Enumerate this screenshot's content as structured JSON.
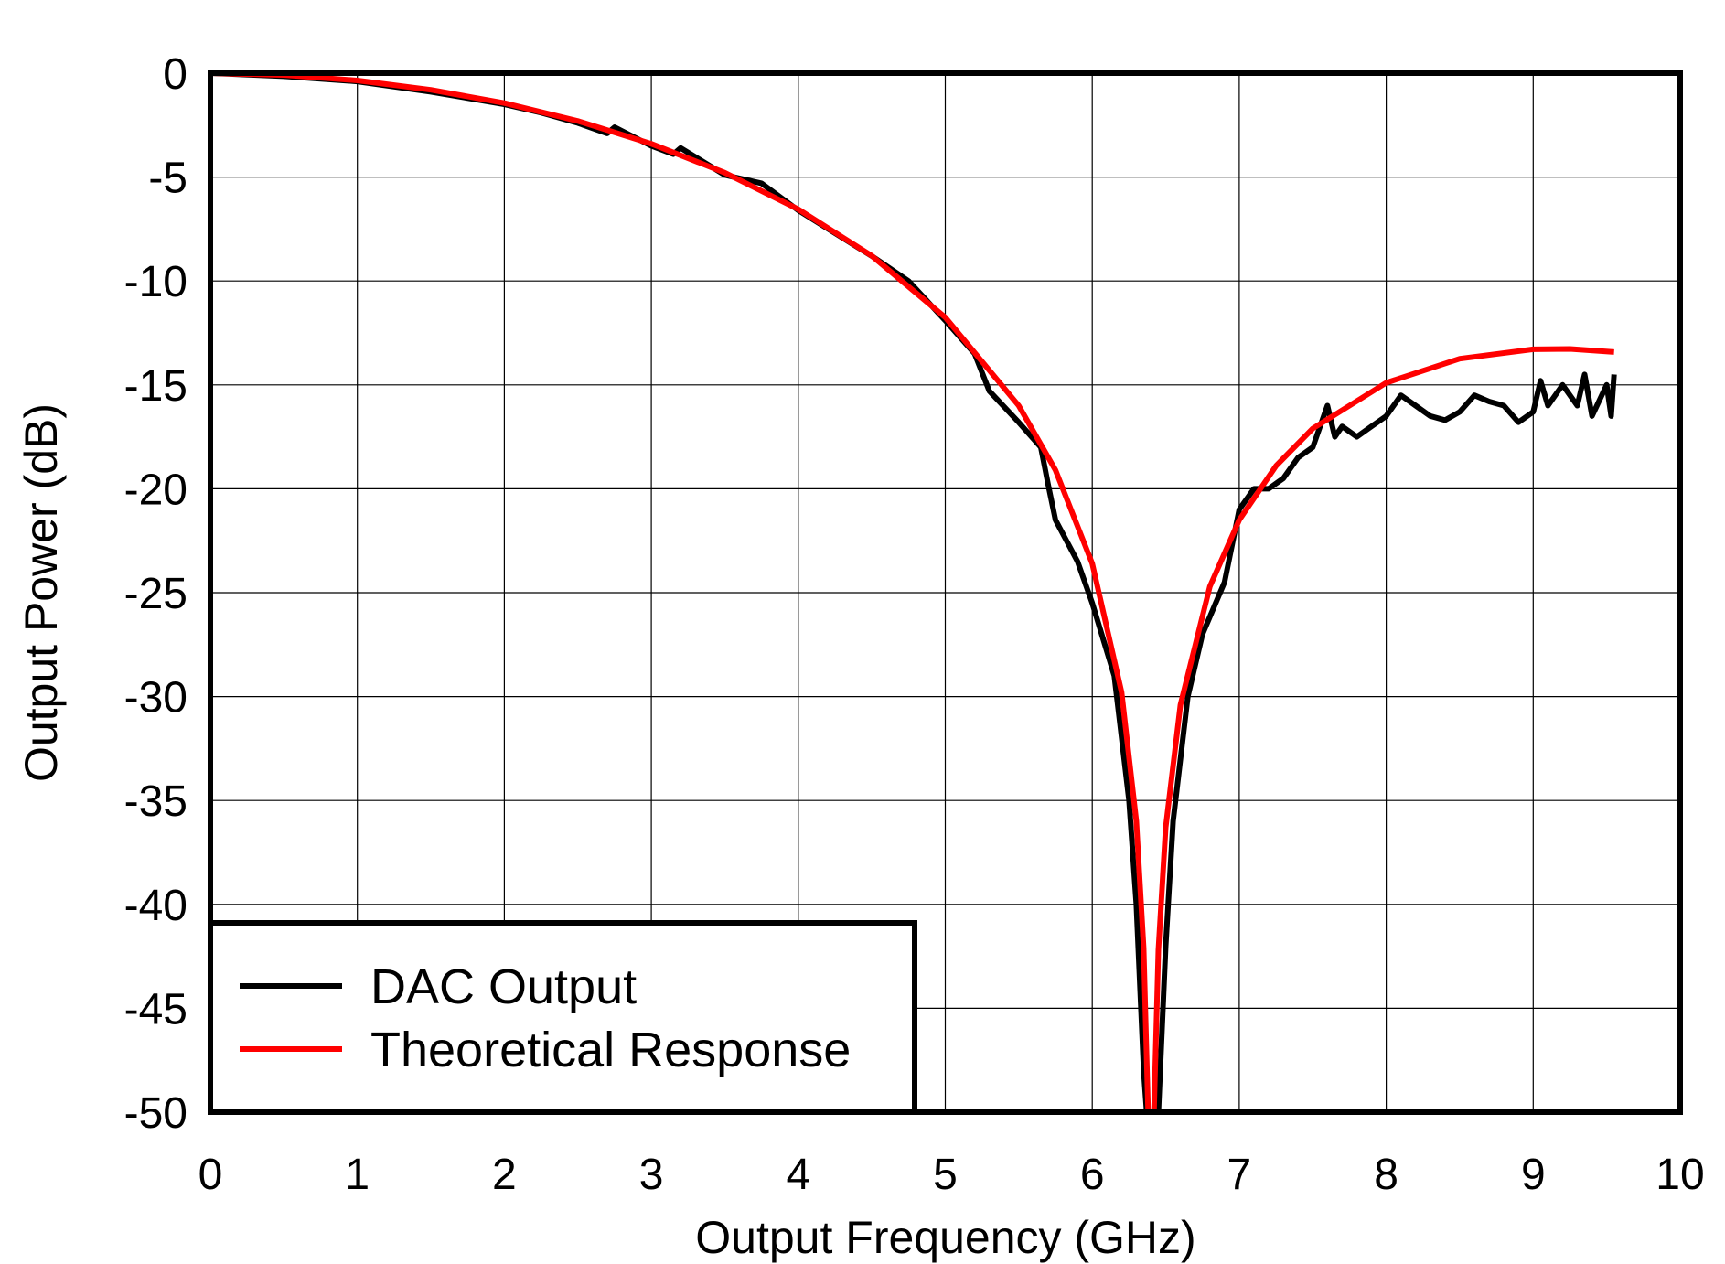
{
  "chart_data": {
    "type": "line",
    "title": "",
    "xlabel": "Output Frequency (GHz)",
    "ylabel": "Output Power (dB)",
    "xlim": [
      0,
      10
    ],
    "ylim": [
      -50,
      0
    ],
    "xticks": [
      "0",
      "1",
      "2",
      "3",
      "4",
      "5",
      "6",
      "7",
      "8",
      "9",
      "10"
    ],
    "yticks": [
      "0",
      "-5",
      "-10",
      "-15",
      "-20",
      "-25",
      "-30",
      "-35",
      "-40",
      "-45",
      "-50"
    ],
    "grid": true,
    "legend_placement": "bottom-left",
    "series": [
      {
        "name": "DAC Output",
        "color": "#000000",
        "x": [
          0,
          0.5,
          1,
          1.5,
          2,
          2.25,
          2.5,
          2.7,
          2.75,
          3,
          3.15,
          3.2,
          3.5,
          3.75,
          4,
          4.5,
          4.75,
          5,
          5.2,
          5.3,
          5.5,
          5.65,
          5.7,
          5.75,
          5.9,
          6.0,
          6.15,
          6.25,
          6.3,
          6.35,
          6.37,
          6.45,
          6.5,
          6.55,
          6.65,
          6.75,
          6.9,
          7.0,
          7.1,
          7.2,
          7.3,
          7.4,
          7.5,
          7.6,
          7.65,
          7.7,
          7.8,
          7.9,
          8.0,
          8.1,
          8.2,
          8.3,
          8.4,
          8.5,
          8.6,
          8.7,
          8.8,
          8.9,
          9.0,
          9.05,
          9.1,
          9.2,
          9.3,
          9.35,
          9.4,
          9.5,
          9.53,
          9.55
        ],
        "y": [
          0,
          -0.15,
          -0.4,
          -0.9,
          -1.5,
          -1.9,
          -2.4,
          -2.9,
          -2.6,
          -3.5,
          -3.9,
          -3.6,
          -4.9,
          -5.3,
          -6.6,
          -8.8,
          -10,
          -11.9,
          -13.5,
          -15.3,
          -16.8,
          -18,
          -19.8,
          -21.5,
          -23.5,
          -25.5,
          -29,
          -35,
          -40,
          -48,
          -50,
          -50,
          -42,
          -36,
          -30,
          -27,
          -24.5,
          -21,
          -20,
          -20,
          -19.5,
          -18.5,
          -18,
          -16,
          -17.5,
          -17,
          -17.5,
          -17,
          -16.5,
          -15.5,
          -16,
          -16.5,
          -16.7,
          -16.3,
          -15.5,
          -15.8,
          -16,
          -16.8,
          -16.3,
          -14.8,
          -16,
          -15,
          -16,
          -14.5,
          -16.5,
          -15,
          -16.5,
          -14.5
        ]
      },
      {
        "name": "Theoretical Response",
        "color": "#ff0000",
        "x": [
          0,
          0.5,
          1,
          1.5,
          2,
          2.5,
          3,
          3.5,
          4,
          4.5,
          5,
          5.5,
          5.75,
          6,
          6.2,
          6.3,
          6.35,
          6.38,
          6.42,
          6.45,
          6.5,
          6.6,
          6.8,
          7,
          7.25,
          7.5,
          8,
          8.5,
          9,
          9.25,
          9.55
        ],
        "y": [
          0,
          -0.09,
          -0.35,
          -0.8,
          -1.44,
          -2.3,
          -3.4,
          -4.79,
          -6.55,
          -8.79,
          -11.75,
          -16.0,
          -19.1,
          -23.6,
          -29.8,
          -36.0,
          -42.1,
          -50,
          -50,
          -42.2,
          -36.3,
          -30.4,
          -24.7,
          -21.5,
          -18.9,
          -17.1,
          -14.9,
          -13.74,
          -13.29,
          -13.27,
          -13.42
        ]
      }
    ]
  }
}
